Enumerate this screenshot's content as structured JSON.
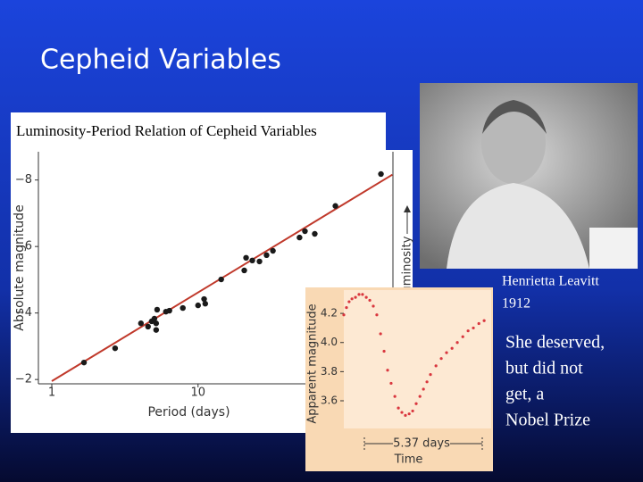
{
  "slide_title": "Cepheid Variables",
  "figure_caption": "Luminosity-Period Relation of Cepheid Variables",
  "photo_caption": [
    "Henrietta Leavitt",
    "1912"
  ],
  "note": [
    "She deserved,",
    "but did not",
    "get, a",
    "Nobel Prize"
  ],
  "chart_data": [
    {
      "type": "scatter",
      "xlabel": "Period (days)",
      "ylabel": "Absolute magnitude",
      "y2label": "Luminosity",
      "log_x": true,
      "color": "#1a1a1a",
      "x": [
        1.66,
        2.71,
        4.07,
        4.55,
        4.82,
        5.03,
        5.17,
        5.25,
        5.17,
        6.03,
        6.37,
        7.87,
        10,
        11.2,
        11.0,
        14.4,
        20.7,
        21.3,
        23.5,
        26.3,
        29.4,
        32.5,
        49.4,
        53.8,
        62.8,
        86.9,
        178
      ],
      "values": [
        -2.51,
        -2.94,
        -3.69,
        -3.59,
        -3.75,
        -3.83,
        -3.69,
        -4.1,
        -3.49,
        -4.04,
        -4.07,
        -4.15,
        -4.23,
        -4.28,
        -4.42,
        -5.01,
        -5.28,
        -5.66,
        -5.58,
        -5.55,
        -5.74,
        -5.87,
        -6.27,
        -6.46,
        -6.38,
        -7.22,
        -8.18
      ],
      "fit": {
        "x": [
          1,
          213
        ],
        "values": [
          -1.95,
          -8.16
        ],
        "color": "#c0392b"
      },
      "xlim": [
        0.81,
        215
      ],
      "ylim": [
        -1.87,
        -8.85
      ],
      "xticks": [
        1,
        10
      ],
      "yticks": [
        {
          "value": -2,
          "label": "−2"
        },
        {
          "value": -4,
          "label": "−4"
        },
        {
          "value": -6,
          "label": "−6"
        },
        {
          "value": -8,
          "label": "−8"
        }
      ]
    },
    {
      "type": "scatter",
      "xlabel": "Time",
      "ylabel": "Apparent magnitude",
      "period_label": "5.37 days",
      "color": "#d9363e",
      "x": [
        0,
        0.12,
        0.24,
        0.37,
        0.53,
        0.69,
        0.85,
        1.02,
        1.18,
        1.34,
        1.5,
        1.67,
        1.83,
        1.99,
        2.15,
        2.32,
        2.48,
        2.64,
        2.8,
        2.97,
        3.13,
        3.29,
        3.46,
        3.62,
        3.78,
        3.94,
        4.19,
        4.43,
        4.67,
        4.92,
        5.16,
        5.41,
        5.65,
        5.89,
        6.14,
        6.38
      ],
      "values": [
        4.19,
        4.24,
        4.28,
        4.3,
        4.31,
        4.33,
        4.33,
        4.31,
        4.29,
        4.25,
        4.19,
        4.06,
        3.94,
        3.81,
        3.72,
        3.63,
        3.55,
        3.52,
        3.5,
        3.51,
        3.53,
        3.58,
        3.63,
        3.68,
        3.73,
        3.78,
        3.84,
        3.89,
        3.93,
        3.96,
        4.0,
        4.04,
        4.08,
        4.1,
        4.13,
        4.15
      ],
      "xlim": [
        0,
        6.7
      ],
      "ylim": [
        3.41,
        4.36
      ],
      "yticks": [
        3.6,
        3.8,
        {
          "value": 4,
          "label": "4.0"
        },
        4.2
      ]
    }
  ]
}
